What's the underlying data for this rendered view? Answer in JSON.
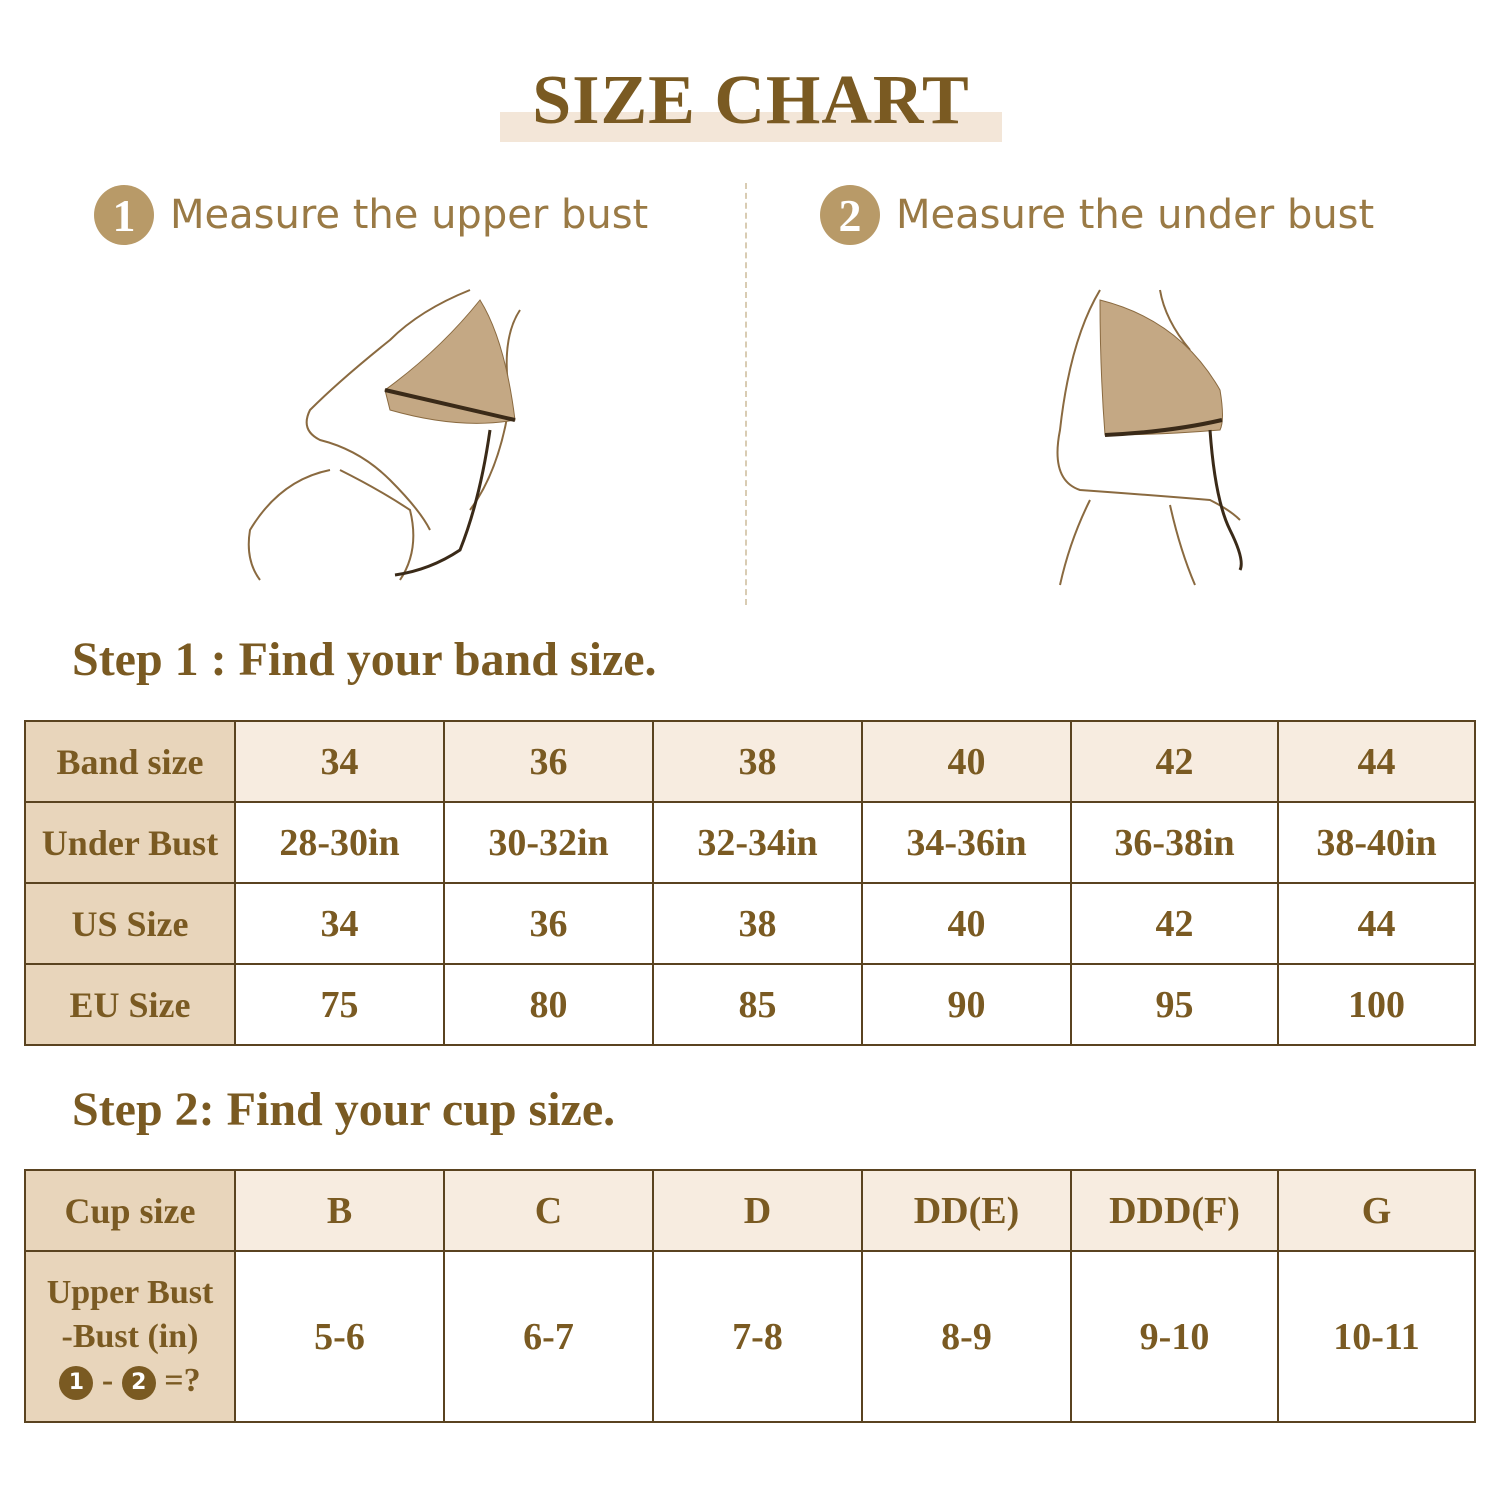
{
  "title": "SIZE CHART",
  "measure": [
    {
      "number": "1",
      "label": "Measure the upper bust"
    },
    {
      "number": "2",
      "label": "Measure the under bust"
    }
  ],
  "step1": {
    "heading": "Step 1 : Find your band size.",
    "rows": [
      {
        "label": "Band size",
        "values": [
          "34",
          "36",
          "38",
          "40",
          "42",
          "44"
        ]
      },
      {
        "label": "Under Bust",
        "values": [
          "28-30in",
          "30-32in",
          "32-34in",
          "34-36in",
          "36-38in",
          "38-40in"
        ]
      },
      {
        "label": "US Size",
        "values": [
          "34",
          "36",
          "38",
          "40",
          "42",
          "44"
        ]
      },
      {
        "label": "EU Size",
        "values": [
          "75",
          "80",
          "85",
          "90",
          "95",
          "100"
        ]
      }
    ]
  },
  "step2": {
    "heading": "Step 2: Find your cup size.",
    "header": {
      "label": "Cup size",
      "values": [
        "B",
        "C",
        "D",
        "DD(E)",
        "DDD(F)",
        "G"
      ]
    },
    "row": {
      "label_line1": "Upper Bust",
      "label_line2": "-Bust (in)",
      "formula": {
        "a": "1",
        "minus": "-",
        "b": "2",
        "equals": "=?"
      },
      "values": [
        "5-6",
        "6-7",
        "7-8",
        "8-9",
        "9-10",
        "10-11"
      ]
    }
  },
  "colors": {
    "text": "#7a5a22",
    "label_bg": "#e8d5bb",
    "header_bg": "#f7ece0",
    "border": "#5a4320",
    "bra": "#c4a884"
  }
}
